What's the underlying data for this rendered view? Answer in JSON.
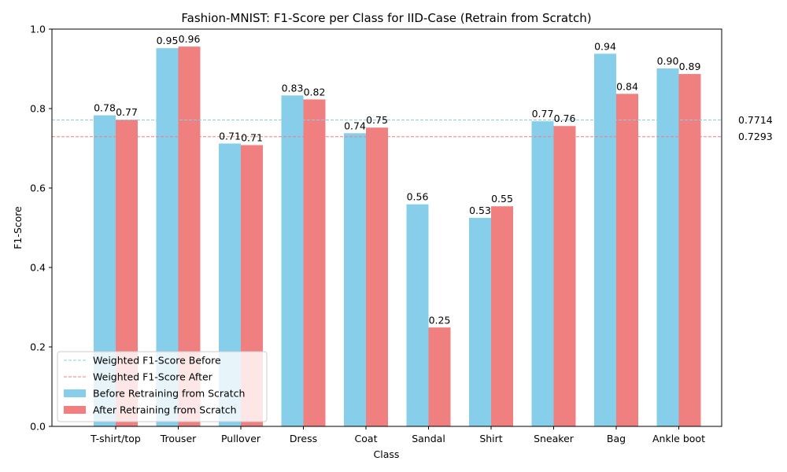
{
  "chart_data": {
    "type": "bar",
    "title": "Fashion-MNIST: F1-Score per Class for IID-Case (Retrain from Scratch)",
    "xlabel": "Class",
    "ylabel": "F1-Score",
    "ylim": [
      0,
      1.0
    ],
    "yticks": [
      "0.0",
      "0.2",
      "0.4",
      "0.6",
      "0.8",
      "1.0"
    ],
    "categories": [
      "T-shirt/top",
      "Trouser",
      "Pullover",
      "Dress",
      "Coat",
      "Sandal",
      "Shirt",
      "Sneaker",
      "Bag",
      "Ankle boot"
    ],
    "series": [
      {
        "name": "Before Retraining from Scratch",
        "color": "#87ceeb",
        "values": [
          0.783,
          0.952,
          0.712,
          0.833,
          0.738,
          0.559,
          0.525,
          0.768,
          0.938,
          0.901
        ],
        "labels": [
          "0.78",
          "0.95",
          "0.71",
          "0.83",
          "0.74",
          "0.56",
          "0.53",
          "0.77",
          "0.94",
          "0.90"
        ]
      },
      {
        "name": "After Retraining from Scratch",
        "color": "#f08080",
        "values": [
          0.772,
          0.956,
          0.708,
          0.823,
          0.752,
          0.249,
          0.554,
          0.756,
          0.837,
          0.887
        ],
        "labels": [
          "0.77",
          "0.96",
          "0.71",
          "0.82",
          "0.75",
          "0.25",
          "0.55",
          "0.76",
          "0.84",
          "0.89"
        ]
      }
    ],
    "reference_lines": [
      {
        "name": "Weighted F1-Score Before",
        "value": 0.7714,
        "label": "0.7714",
        "color": "#87ceeb"
      },
      {
        "name": "Weighted F1-Score After",
        "value": 0.7293,
        "label": "0.7293",
        "color": "#f08080"
      }
    ],
    "legend_position": "lower-left",
    "grid": false
  }
}
